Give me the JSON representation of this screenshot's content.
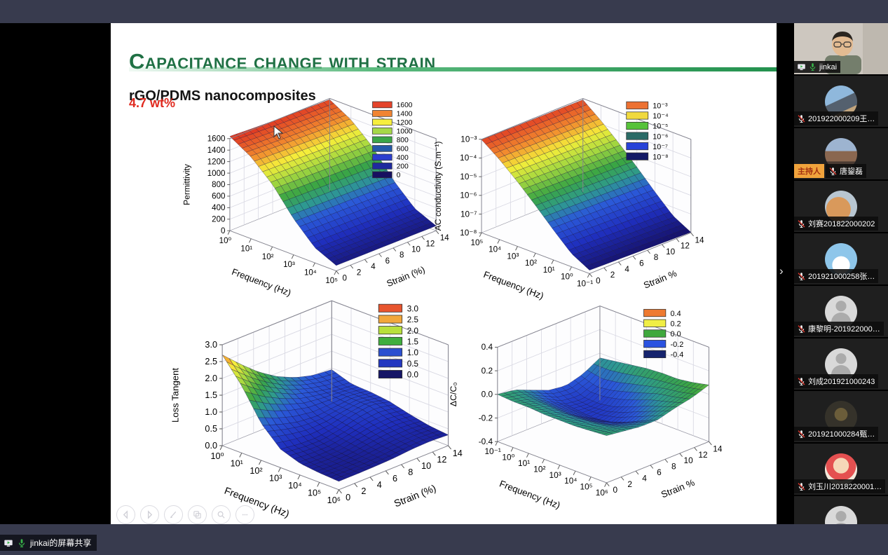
{
  "window": {
    "share_banner": "jinkai的屏幕共享",
    "expand_chevron": "›"
  },
  "slide": {
    "title": "Capacitance change with strain",
    "subtitle": "rGO/PDMS nanocomposites",
    "annotation": "4.7 wt%",
    "accent_green": "#1f7044",
    "annotation_color": "#e02a1f",
    "toolbar": [
      "previous",
      "next",
      "pen",
      "slides",
      "zoom",
      "more"
    ]
  },
  "participants": [
    {
      "name": "jinkai",
      "type": "video",
      "sharing": true,
      "mic": "on"
    },
    {
      "name": "201922000209王…",
      "type": "avatar",
      "avatar": "beach",
      "mic": "muted"
    },
    {
      "name": "唐鋆磊",
      "type": "avatar",
      "avatar": "city",
      "mic": "muted",
      "badge": "主持人"
    },
    {
      "name": "刘赛201822000202",
      "type": "avatar",
      "avatar": "cat",
      "mic": "muted"
    },
    {
      "name": "201921000258张…",
      "type": "avatar",
      "avatar": "sky",
      "mic": "muted"
    },
    {
      "name": "康黎明-201922000…",
      "type": "avatar",
      "avatar": "default",
      "mic": "muted"
    },
    {
      "name": "刘成201921000243",
      "type": "avatar",
      "avatar": "default",
      "mic": "muted"
    },
    {
      "name": "201921000284甄…",
      "type": "avatar",
      "avatar": "dark",
      "mic": "muted"
    },
    {
      "name": "刘玉川2018220001…",
      "type": "avatar",
      "avatar": "baby",
      "mic": "muted"
    },
    {
      "name": "",
      "type": "avatar",
      "avatar": "default",
      "mic": "muted"
    }
  ],
  "chart_data": [
    {
      "type": "surface3d",
      "zlabel": "Permittivity",
      "xlabel": "Frequency (Hz)",
      "ylabel": "Strain (%)",
      "x_scale": "log",
      "x_ticks": [
        "10⁰",
        "10¹",
        "10²",
        "10³",
        "10⁴",
        "10⁵"
      ],
      "y_ticks": [
        "0",
        "2",
        "4",
        "6",
        "8",
        "10",
        "12",
        "14"
      ],
      "z_ticks": [
        "0",
        "200",
        "400",
        "600",
        "800",
        "1000",
        "1200",
        "1400",
        "1600"
      ],
      "zlim": [
        0,
        1600
      ],
      "legend": {
        "labels": [
          "1600",
          "1400",
          "1200",
          "1000",
          "800",
          "600",
          "400",
          "200",
          "0"
        ],
        "colors": [
          "#e4442b",
          "#f08432",
          "#f6ee3e",
          "#a5d848",
          "#3aa547",
          "#2458a8",
          "#2b3ecf",
          "#1f2a9e",
          "#171060"
        ]
      },
      "surface": [
        [
          1640,
          1620,
          1605,
          1595,
          1588,
          1580
        ],
        [
          1420,
          1408,
          1396,
          1385,
          1376,
          1368
        ],
        [
          1085,
          1075,
          1066,
          1058,
          1050,
          1042
        ],
        [
          625,
          618,
          612,
          606,
          600,
          594
        ],
        [
          262,
          258,
          254,
          251,
          248,
          245
        ],
        [
          95,
          92,
          90,
          88,
          86,
          84
        ]
      ]
    },
    {
      "type": "surface3d",
      "zlabel": "AC conductivity (S.m⁻¹)",
      "xlabel": "Frequency (Hz)",
      "ylabel": "Strain %",
      "x_scale": "log",
      "z_scale": "log10",
      "x_ticks": [
        "10⁵",
        "10⁴",
        "10³",
        "10²",
        "10¹",
        "10⁰",
        "10⁻¹"
      ],
      "y_ticks": [
        "0",
        "2",
        "4",
        "6",
        "8",
        "10",
        "12",
        "14"
      ],
      "z_ticks": [
        "10⁻⁸",
        "10⁻⁷",
        "10⁻⁶",
        "10⁻⁵",
        "10⁻⁴",
        "10⁻³"
      ],
      "zlim": [
        -8,
        -3
      ],
      "legend": {
        "labels": [
          "10⁻³",
          "10⁻⁴",
          "10⁻⁵",
          "10⁻⁶",
          "10⁻⁷",
          "10⁻⁸"
        ],
        "colors": [
          "#ed7131",
          "#f0d93e",
          "#56c23a",
          "#2a6b66",
          "#2742d8",
          "#141a66"
        ]
      },
      "surface": [
        [
          -3.02,
          -3.03,
          -3.04,
          -3.05,
          -3.06,
          -3.07
        ],
        [
          -3.72,
          -3.74,
          -3.76,
          -3.78,
          -3.8,
          -3.82
        ],
        [
          -4.55,
          -4.57,
          -4.6,
          -4.62,
          -4.65,
          -4.67
        ],
        [
          -5.45,
          -5.47,
          -5.5,
          -5.53,
          -5.56,
          -5.58
        ],
        [
          -6.4,
          -6.42,
          -6.45,
          -6.48,
          -6.51,
          -6.54
        ],
        [
          -7.3,
          -7.33,
          -7.36,
          -7.39,
          -7.42,
          -7.45
        ],
        [
          -7.82,
          -7.85,
          -7.88,
          -7.91,
          -7.94,
          -7.97
        ]
      ]
    },
    {
      "type": "surface3d",
      "zlabel": "Loss Tangent",
      "xlabel": "Frequency (Hz)",
      "ylabel": "Strain (%)",
      "x_scale": "log",
      "x_ticks": [
        "10⁰",
        "10¹",
        "10²",
        "10³",
        "10⁴",
        "10⁵",
        "10⁶"
      ],
      "y_ticks": [
        "0",
        "2",
        "4",
        "6",
        "8",
        "10",
        "12",
        "14"
      ],
      "z_ticks": [
        "0.0",
        "0.5",
        "1.0",
        "1.5",
        "2.0",
        "2.5",
        "3.0"
      ],
      "zlim": [
        0,
        3
      ],
      "legend": {
        "labels": [
          "3.0",
          "2.5",
          "2.0",
          "1.5",
          "1.0",
          "0.5",
          "0.0"
        ],
        "colors": [
          "#e8552e",
          "#f2a73b",
          "#b8e03c",
          "#3fae3d",
          "#2b4fd0",
          "#2337c0",
          "#151566"
        ]
      },
      "surface": [
        [
          2.7,
          2.2,
          1.75,
          1.4,
          1.15,
          1.0,
          0.95
        ],
        [
          2.0,
          1.6,
          1.3,
          1.05,
          0.9,
          0.8,
          0.75
        ],
        [
          1.1,
          0.9,
          0.75,
          0.7,
          0.75,
          0.8,
          0.72
        ],
        [
          0.55,
          0.48,
          0.46,
          0.55,
          0.7,
          0.78,
          0.65
        ],
        [
          0.35,
          0.32,
          0.34,
          0.45,
          0.55,
          0.58,
          0.5
        ],
        [
          0.28,
          0.27,
          0.28,
          0.34,
          0.4,
          0.42,
          0.38
        ],
        [
          0.25,
          0.25,
          0.26,
          0.28,
          0.33,
          0.35,
          0.32
        ]
      ]
    },
    {
      "type": "surface3d",
      "zlabel": "ΔC/C₀",
      "xlabel": "Frequency (Hz)",
      "ylabel": "Strain %",
      "x_scale": "log",
      "x_ticks": [
        "10⁻¹",
        "10⁰",
        "10¹",
        "10²",
        "10³",
        "10⁴",
        "10⁵",
        "10⁶"
      ],
      "y_ticks": [
        "0",
        "2",
        "4",
        "6",
        "8",
        "10",
        "12",
        "14"
      ],
      "z_ticks": [
        "-0.4",
        "-0.2",
        "0.0",
        "0.2",
        "0.4"
      ],
      "zlim": [
        -0.4,
        0.4
      ],
      "legend": {
        "labels": [
          "0.4",
          "0.2",
          "0.0",
          "-0.2",
          "-0.4"
        ],
        "colors": [
          "#ee7a31",
          "#f0ee45",
          "#3fa83d",
          "#2a52e0",
          "#16246e"
        ]
      },
      "surface": [
        [
          0.0,
          -0.02,
          -0.08,
          -0.14,
          -0.16,
          -0.12,
          -0.04
        ],
        [
          -0.01,
          -0.04,
          -0.12,
          -0.2,
          -0.22,
          -0.16,
          -0.02
        ],
        [
          -0.01,
          -0.05,
          -0.14,
          -0.22,
          -0.23,
          -0.14,
          0.0
        ],
        [
          -0.02,
          -0.06,
          -0.15,
          -0.23,
          -0.21,
          -0.1,
          0.02
        ],
        [
          -0.02,
          -0.06,
          -0.14,
          -0.21,
          -0.16,
          -0.06,
          0.03
        ],
        [
          -0.02,
          -0.05,
          -0.12,
          -0.16,
          -0.1,
          -0.02,
          0.03
        ],
        [
          -0.01,
          -0.04,
          -0.08,
          -0.1,
          -0.05,
          0.0,
          0.05
        ],
        [
          0.0,
          -0.02,
          -0.04,
          -0.04,
          0.0,
          0.03,
          0.08
        ]
      ]
    }
  ]
}
